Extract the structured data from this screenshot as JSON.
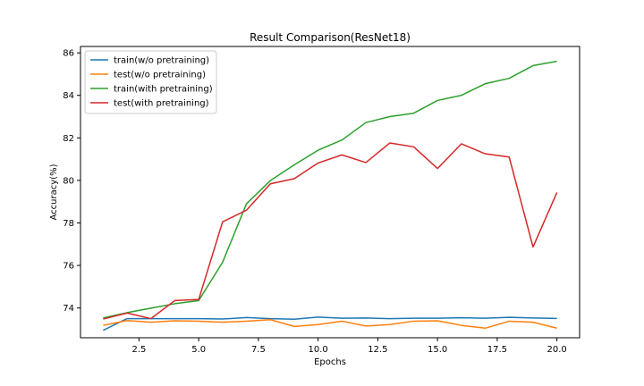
{
  "chart_data": {
    "type": "line",
    "title": "Result Comparison(ResNet18)",
    "xlabel": "Epochs",
    "ylabel": "Accuracy(%)",
    "xlim": [
      0.05,
      20.95
    ],
    "ylim": [
      72.6,
      86.3
    ],
    "xticks": [
      2.5,
      5.0,
      7.5,
      10.0,
      12.5,
      15.0,
      17.5,
      20.0
    ],
    "xtick_labels": [
      "2.5",
      "5.0",
      "7.5",
      "10.0",
      "12.5",
      "15.0",
      "17.5",
      "20.0"
    ],
    "yticks": [
      74,
      76,
      78,
      80,
      82,
      84,
      86
    ],
    "ytick_labels": [
      "74",
      "76",
      "78",
      "80",
      "82",
      "84",
      "86"
    ],
    "grid": false,
    "legend_position": "top-left",
    "x": [
      1,
      2,
      3,
      4,
      5,
      6,
      7,
      8,
      9,
      10,
      11,
      12,
      13,
      14,
      15,
      16,
      17,
      18,
      19,
      20
    ],
    "series": [
      {
        "name": "train(w/o pretraining)",
        "color": "#1f77b4",
        "values": [
          72.95,
          73.5,
          73.5,
          73.5,
          73.5,
          73.48,
          73.55,
          73.5,
          73.47,
          73.57,
          73.52,
          73.53,
          73.5,
          73.52,
          73.52,
          73.54,
          73.52,
          73.56,
          73.53,
          73.51
        ]
      },
      {
        "name": "test(w/o pretraining)",
        "color": "#ff7f0e",
        "values": [
          73.18,
          73.41,
          73.33,
          73.4,
          73.38,
          73.33,
          73.38,
          73.45,
          73.13,
          73.22,
          73.38,
          73.15,
          73.22,
          73.38,
          73.4,
          73.18,
          73.05,
          73.38,
          73.33,
          73.05
        ]
      },
      {
        "name": "train(with pretraining)",
        "color": "#2ca02c",
        "values": [
          73.53,
          73.78,
          73.99,
          74.2,
          74.35,
          76.15,
          78.9,
          79.99,
          80.73,
          81.42,
          81.9,
          82.72,
          83.0,
          83.16,
          83.76,
          84.0,
          84.55,
          84.8,
          85.4,
          85.6
        ]
      },
      {
        "name": "test(with pretraining)",
        "color": "#d62728",
        "values": [
          73.48,
          73.76,
          73.5,
          74.35,
          74.4,
          78.05,
          78.6,
          79.84,
          80.08,
          80.82,
          81.2,
          80.84,
          81.76,
          81.58,
          80.56,
          81.72,
          81.25,
          81.1,
          76.87,
          79.43
        ]
      }
    ]
  }
}
